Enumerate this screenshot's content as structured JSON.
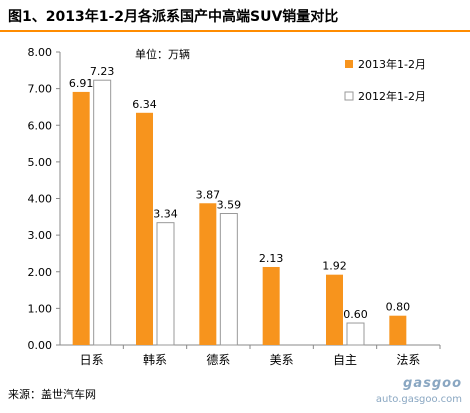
{
  "title": "图1、2013年1-2月各派系国产中高端SUV销量对比",
  "source": "来源：盖世汽车网",
  "watermark": {
    "logo": "gasgoo",
    "url": "auto.gasgoo.com"
  },
  "colors": {
    "accent_line": "#ff8c00",
    "bar_2013": "#f7941d",
    "bar_2012": "#ffffff",
    "bar_2012_border": "#999999"
  },
  "chart_data": {
    "type": "bar",
    "unit_label": "单位：万辆",
    "categories": [
      "日系",
      "韩系",
      "德系",
      "美系",
      "自主",
      "法系"
    ],
    "series": [
      {
        "name": "2013年1-2月",
        "values": [
          6.91,
          6.34,
          3.87,
          2.13,
          1.92,
          0.8
        ],
        "labels": [
          "6.91",
          "6.34",
          "3.87",
          "2.13",
          "1.92",
          "0.80"
        ]
      },
      {
        "name": "2012年1-2月",
        "values": [
          7.23,
          3.34,
          3.59,
          null,
          0.6,
          null
        ],
        "labels": [
          "7.23",
          "3.34",
          "3.59",
          "",
          "0.60",
          ""
        ]
      }
    ],
    "ylim": [
      0,
      8
    ],
    "yticks": [
      "0.00",
      "1.00",
      "2.00",
      "3.00",
      "4.00",
      "5.00",
      "6.00",
      "7.00",
      "8.00"
    ],
    "legend_position": "top-right",
    "grid": false
  }
}
